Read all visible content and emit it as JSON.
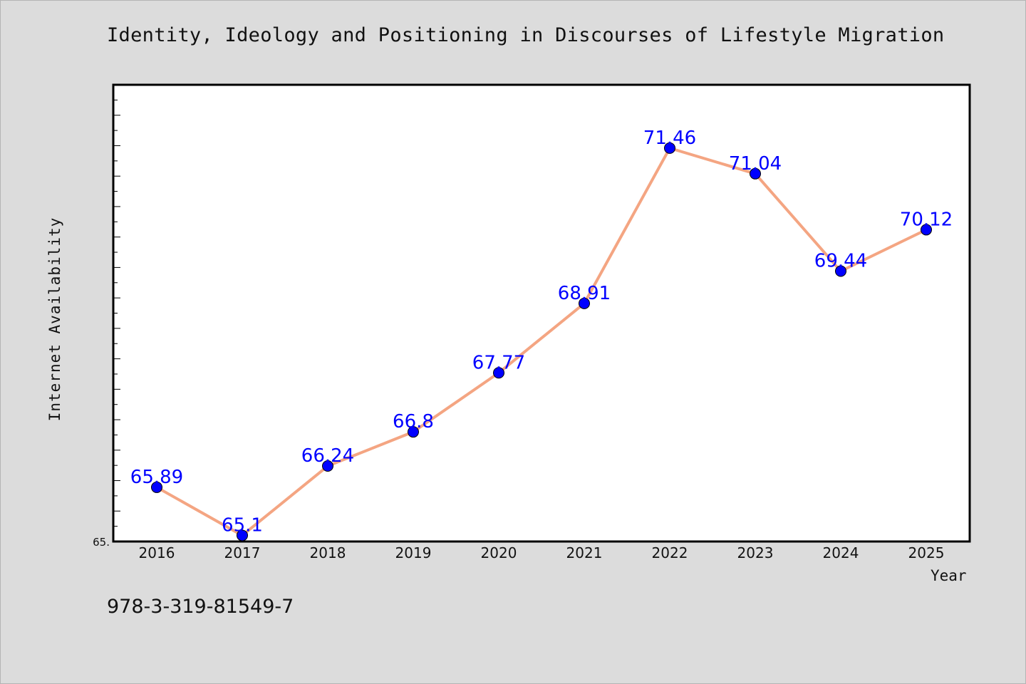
{
  "chart_data": {
    "type": "line",
    "title": "Identity, Ideology and Positioning in Discourses of Lifestyle Migration",
    "xlabel": "Year",
    "ylabel": "Internet Availability",
    "categories": [
      "2016",
      "2017",
      "2018",
      "2019",
      "2020",
      "2021",
      "2022",
      "2023",
      "2024",
      "2025"
    ],
    "series": [
      {
        "values": [
          65.89,
          65.1,
          66.24,
          66.8,
          67.77,
          68.91,
          71.46,
          71.04,
          69.44,
          70.12
        ],
        "labels": [
          "65.89",
          "65.1",
          "66.24",
          "66.8",
          "67.77",
          "68.91",
          "71.46",
          "71.04",
          "69.44",
          "70.12"
        ]
      }
    ],
    "ylim": [
      65.0,
      72.5
    ],
    "y_tick_label": "65.",
    "grid": false,
    "line_color": "#f4a582",
    "marker_color": "#0000ff",
    "label_color": "#0000ff",
    "plot_background": "#ffffff",
    "figure_background": "#dcdcdc"
  },
  "footer": {
    "isbn": "978-3-319-81549-7"
  }
}
